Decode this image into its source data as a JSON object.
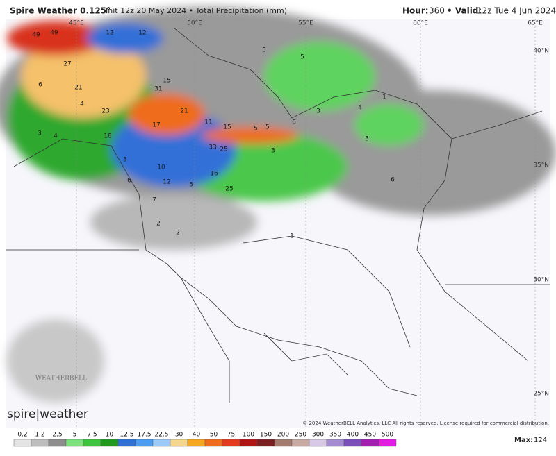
{
  "header": {
    "title": "Spire Weather 0.125°",
    "subtitle": "Init 12z 20 May 2024 • Total Precipitation (mm)",
    "hour_label": "Hour:",
    "hour": "360",
    "valid_label": "• Valid:",
    "valid": "12z Tue 4 Jun 2024"
  },
  "map": {
    "longitudes": [
      "45°E",
      "50°E",
      "55°E",
      "60°E",
      "65°E"
    ],
    "latitudes": [
      "40°N",
      "35°N",
      "30°N",
      "25°N"
    ],
    "labels": [
      49,
      49,
      12,
      12,
      5,
      5,
      27,
      6,
      31,
      15,
      21,
      4,
      23,
      21,
      1,
      3,
      4,
      3,
      4,
      18,
      17,
      11,
      15,
      5,
      5,
      6,
      3,
      33,
      25,
      3,
      3,
      10,
      6,
      12,
      5,
      16,
      25,
      6,
      7,
      2,
      2,
      1
    ]
  },
  "footer": {
    "brand": "spire|weather",
    "watermark": "WEATHERBELL",
    "copyright": "© 2024 WeatherBELL Analytics, LLC All rights reserved. License required for commercial distribution."
  },
  "colorbar": {
    "ticks": [
      0.2,
      1.2,
      2.5,
      5,
      7.5,
      10,
      12.5,
      17.5,
      22.5,
      30,
      40,
      50,
      75,
      100,
      150,
      200,
      250,
      300,
      350,
      400,
      450,
      500
    ],
    "colors": [
      "#e4e4e4",
      "#bdbdbd",
      "#8e8e8e",
      "#7fe07f",
      "#3fc43f",
      "#1f9a1f",
      "#2f6fd6",
      "#4d9cf0",
      "#9cc9f5",
      "#f4d58d",
      "#f5a623",
      "#ef6c1c",
      "#e33b1f",
      "#b01515",
      "#7a2020",
      "#a47c6e",
      "#c9aaa2",
      "#d7c8e6",
      "#a58bd0",
      "#7a4fb8",
      "#a21fb0",
      "#e21ce0"
    ],
    "max_label": "Max:",
    "max": 124
  }
}
